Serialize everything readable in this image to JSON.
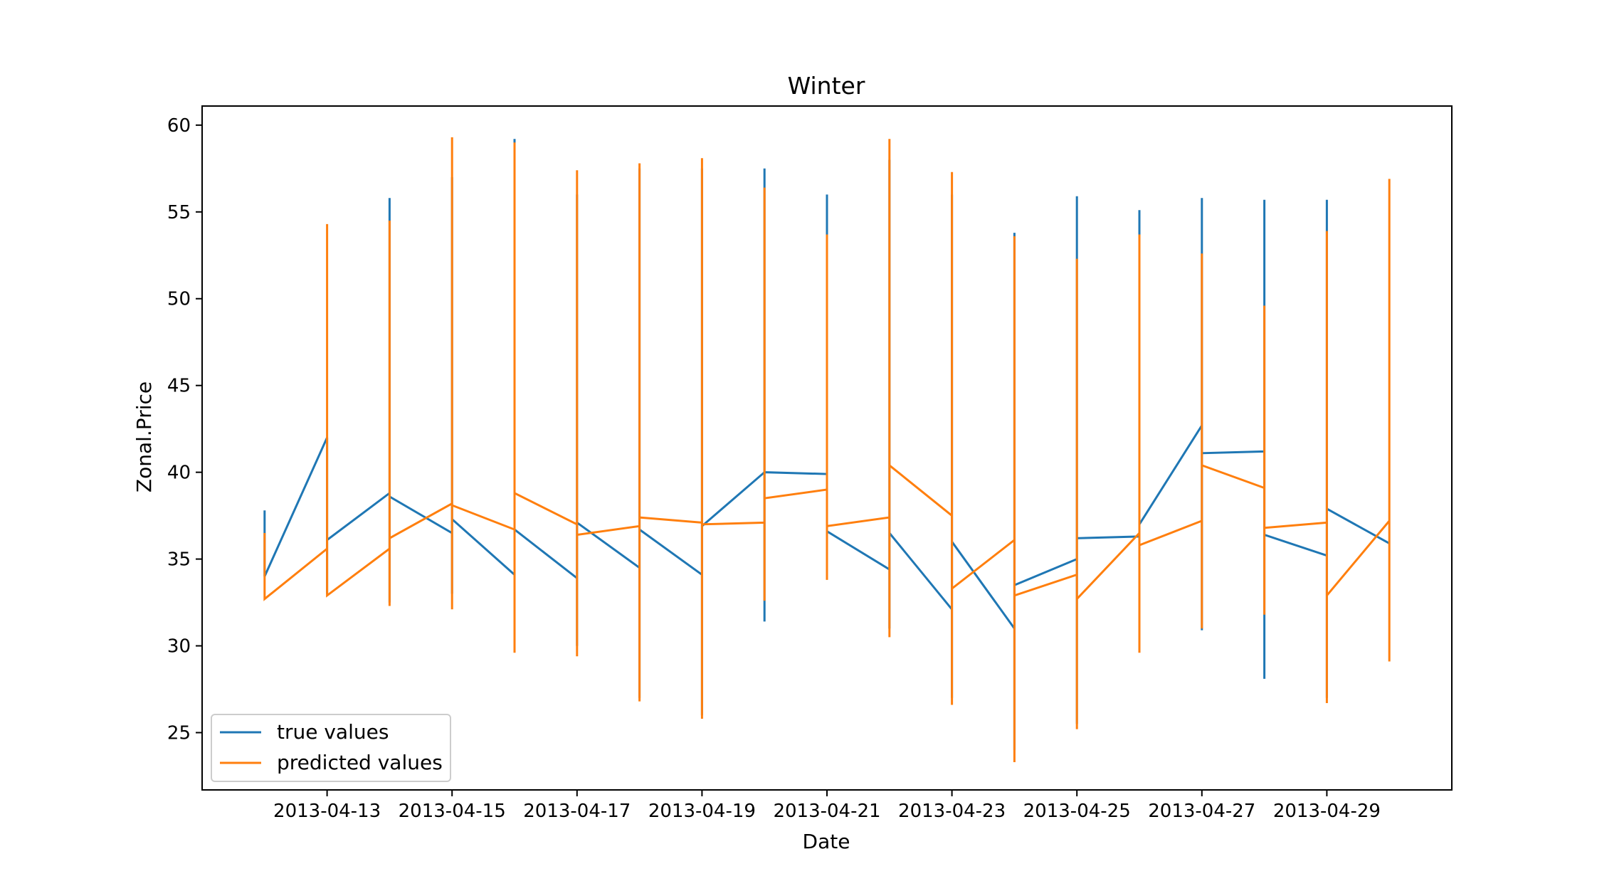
{
  "chart_data": {
    "type": "line",
    "title": "Winter",
    "xlabel": "Date",
    "ylabel": "Zonal.Price",
    "xlim": [
      "2013-04-11T00:00",
      "2013-05-01T00:00"
    ],
    "ylim": [
      21.7,
      61.1
    ],
    "x_ticks": [
      "2013-04-13",
      "2013-04-15",
      "2013-04-17",
      "2013-04-19",
      "2013-04-21",
      "2013-04-23",
      "2013-04-25",
      "2013-04-27",
      "2013-04-29"
    ],
    "y_ticks": [
      25,
      30,
      35,
      40,
      45,
      50,
      55,
      60
    ],
    "grid": false,
    "legend_position": "lower-left",
    "series": [
      {
        "name": "true values",
        "color": "#1f77b4",
        "points": [
          [
            "2013-04-12",
            37.8
          ],
          [
            "2013-04-12",
            34.0
          ],
          [
            "2013-04-13",
            42.0
          ],
          [
            "2013-04-13",
            33.0
          ],
          [
            "2013-04-13",
            36.1
          ],
          [
            "2013-04-14",
            38.8
          ],
          [
            "2013-04-14",
            55.8
          ],
          [
            "2013-04-14",
            32.5
          ],
          [
            "2013-04-14",
            38.6
          ],
          [
            "2013-04-15",
            36.5
          ],
          [
            "2013-04-15",
            57.0
          ],
          [
            "2013-04-15",
            33.0
          ],
          [
            "2013-04-15",
            37.3
          ],
          [
            "2013-04-16",
            34.1
          ],
          [
            "2013-04-16",
            59.2
          ],
          [
            "2013-04-16",
            30.0
          ],
          [
            "2013-04-16",
            36.7
          ],
          [
            "2013-04-17",
            33.9
          ],
          [
            "2013-04-17",
            56.0
          ],
          [
            "2013-04-17",
            30.0
          ],
          [
            "2013-04-17",
            37.1
          ],
          [
            "2013-04-18",
            34.5
          ],
          [
            "2013-04-18",
            57.5
          ],
          [
            "2013-04-18",
            27.0
          ],
          [
            "2013-04-18",
            36.7
          ],
          [
            "2013-04-19",
            34.1
          ],
          [
            "2013-04-19",
            57.5
          ],
          [
            "2013-04-19",
            26.0
          ],
          [
            "2013-04-19",
            36.9
          ],
          [
            "2013-04-20",
            40.0
          ],
          [
            "2013-04-20",
            57.5
          ],
          [
            "2013-04-20",
            31.4
          ],
          [
            "2013-04-20",
            40.0
          ],
          [
            "2013-04-21",
            39.9
          ],
          [
            "2013-04-21",
            56.0
          ],
          [
            "2013-04-21",
            34.0
          ],
          [
            "2013-04-21",
            36.6
          ],
          [
            "2013-04-22",
            34.4
          ],
          [
            "2013-04-22",
            58.0
          ],
          [
            "2013-04-22",
            31.0
          ],
          [
            "2013-04-22",
            36.5
          ],
          [
            "2013-04-23",
            32.1
          ],
          [
            "2013-04-23",
            56.0
          ],
          [
            "2013-04-23",
            27.0
          ],
          [
            "2013-04-23",
            36.0
          ],
          [
            "2013-04-24",
            31.0
          ],
          [
            "2013-04-24",
            53.8
          ],
          [
            "2013-04-24",
            24.0
          ],
          [
            "2013-04-24",
            33.5
          ],
          [
            "2013-04-25",
            35.0
          ],
          [
            "2013-04-25",
            55.9
          ],
          [
            "2013-04-25",
            25.5
          ],
          [
            "2013-04-25",
            36.2
          ],
          [
            "2013-04-26",
            36.3
          ],
          [
            "2013-04-26",
            55.1
          ],
          [
            "2013-04-26",
            29.8
          ],
          [
            "2013-04-26",
            37.0
          ],
          [
            "2013-04-27",
            42.7
          ],
          [
            "2013-04-27",
            55.8
          ],
          [
            "2013-04-27",
            30.9
          ],
          [
            "2013-04-27",
            41.1
          ],
          [
            "2013-04-28",
            41.2
          ],
          [
            "2013-04-28",
            55.7
          ],
          [
            "2013-04-28",
            28.1
          ],
          [
            "2013-04-28",
            36.4
          ],
          [
            "2013-04-29",
            35.2
          ],
          [
            "2013-04-29",
            55.7
          ],
          [
            "2013-04-29",
            27.0
          ],
          [
            "2013-04-29",
            37.9
          ],
          [
            "2013-04-30",
            35.9
          ]
        ]
      },
      {
        "name": "predicted values",
        "color": "#ff7f0e",
        "points": [
          [
            "2013-04-12",
            36.5
          ],
          [
            "2013-04-12",
            32.7
          ],
          [
            "2013-04-13",
            35.6
          ],
          [
            "2013-04-13",
            54.3
          ],
          [
            "2013-04-13",
            32.9
          ],
          [
            "2013-04-14",
            35.6
          ],
          [
            "2013-04-14",
            54.5
          ],
          [
            "2013-04-14",
            32.3
          ],
          [
            "2013-04-14",
            36.2
          ],
          [
            "2013-04-15",
            38.2
          ],
          [
            "2013-04-15",
            59.3
          ],
          [
            "2013-04-15",
            32.1
          ],
          [
            "2013-04-15",
            38.1
          ],
          [
            "2013-04-16",
            36.7
          ],
          [
            "2013-04-16",
            59.0
          ],
          [
            "2013-04-16",
            29.6
          ],
          [
            "2013-04-16",
            38.8
          ],
          [
            "2013-04-17",
            37.0
          ],
          [
            "2013-04-17",
            57.4
          ],
          [
            "2013-04-17",
            29.4
          ],
          [
            "2013-04-17",
            36.4
          ],
          [
            "2013-04-18",
            36.9
          ],
          [
            "2013-04-18",
            57.8
          ],
          [
            "2013-04-18",
            26.8
          ],
          [
            "2013-04-18",
            37.4
          ],
          [
            "2013-04-19",
            37.1
          ],
          [
            "2013-04-19",
            58.1
          ],
          [
            "2013-04-19",
            25.8
          ],
          [
            "2013-04-19",
            37.0
          ],
          [
            "2013-04-20",
            37.1
          ],
          [
            "2013-04-20",
            56.4
          ],
          [
            "2013-04-20",
            32.6
          ],
          [
            "2013-04-20",
            38.5
          ],
          [
            "2013-04-21",
            39.0
          ],
          [
            "2013-04-21",
            53.7
          ],
          [
            "2013-04-21",
            33.8
          ],
          [
            "2013-04-21",
            36.9
          ],
          [
            "2013-04-22",
            37.4
          ],
          [
            "2013-04-22",
            59.2
          ],
          [
            "2013-04-22",
            30.5
          ],
          [
            "2013-04-22",
            40.4
          ],
          [
            "2013-04-23",
            37.5
          ],
          [
            "2013-04-23",
            57.3
          ],
          [
            "2013-04-23",
            26.6
          ],
          [
            "2013-04-23",
            33.3
          ],
          [
            "2013-04-24",
            36.1
          ],
          [
            "2013-04-24",
            53.6
          ],
          [
            "2013-04-24",
            23.3
          ],
          [
            "2013-04-24",
            32.9
          ],
          [
            "2013-04-25",
            34.1
          ],
          [
            "2013-04-25",
            52.3
          ],
          [
            "2013-04-25",
            25.2
          ],
          [
            "2013-04-25",
            32.7
          ],
          [
            "2013-04-26",
            36.5
          ],
          [
            "2013-04-26",
            53.7
          ],
          [
            "2013-04-26",
            29.6
          ],
          [
            "2013-04-26",
            35.8
          ],
          [
            "2013-04-27",
            37.2
          ],
          [
            "2013-04-27",
            52.6
          ],
          [
            "2013-04-27",
            31.0
          ],
          [
            "2013-04-27",
            40.4
          ],
          [
            "2013-04-28",
            39.1
          ],
          [
            "2013-04-28",
            49.6
          ],
          [
            "2013-04-28",
            31.8
          ],
          [
            "2013-04-28",
            36.8
          ],
          [
            "2013-04-29",
            37.1
          ],
          [
            "2013-04-29",
            53.9
          ],
          [
            "2013-04-29",
            26.7
          ],
          [
            "2013-04-29",
            32.9
          ],
          [
            "2013-04-30",
            37.2
          ],
          [
            "2013-04-30",
            56.9
          ],
          [
            "2013-04-30",
            29.1
          ]
        ]
      }
    ]
  }
}
